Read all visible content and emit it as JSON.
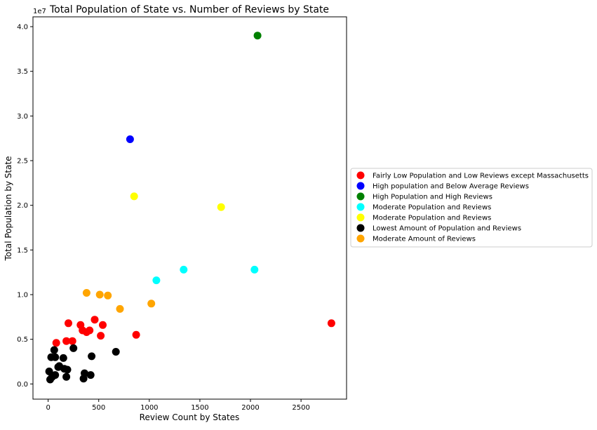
{
  "chart_data": {
    "type": "scatter",
    "title": "Total Population of State vs. Number of Reviews by State",
    "xlabel": "Review Count by States",
    "ylabel": "Total Population by State",
    "y_offset_label": "1e7",
    "xlim": [
      -150,
      2950
    ],
    "ylim": [
      -0.17,
      4.11
    ],
    "y_scale_factor": 10000000,
    "x_ticks": [
      0,
      500,
      1000,
      1500,
      2000,
      2500
    ],
    "x_tick_labels": [
      "0",
      "500",
      "1000",
      "1500",
      "2000",
      "2500"
    ],
    "y_ticks": [
      0,
      0.5,
      1.0,
      1.5,
      2.0,
      2.5,
      3.0,
      3.5,
      4.0
    ],
    "y_tick_labels": [
      "0.0",
      "0.5",
      "1.0",
      "1.5",
      "2.0",
      "2.5",
      "3.0",
      "3.5",
      "4.0"
    ],
    "grid": false,
    "legend_position": "outside-right",
    "series": [
      {
        "name": "Fairly Low Population and Low Reviews except Massachusetts",
        "color": "#ff0000",
        "points": [
          [
            80,
            0.46
          ],
          [
            180,
            0.48
          ],
          [
            200,
            0.68
          ],
          [
            240,
            0.48
          ],
          [
            320,
            0.66
          ],
          [
            340,
            0.6
          ],
          [
            380,
            0.58
          ],
          [
            410,
            0.6
          ],
          [
            460,
            0.72
          ],
          [
            520,
            0.54
          ],
          [
            540,
            0.66
          ],
          [
            870,
            0.55
          ],
          [
            2800,
            0.68
          ]
        ]
      },
      {
        "name": "High population and Below Average Reviews",
        "color": "#0000ff",
        "points": [
          [
            810,
            2.74
          ]
        ]
      },
      {
        "name": "High Population and High Reviews",
        "color": "#008000",
        "points": [
          [
            2070,
            3.9
          ]
        ]
      },
      {
        "name": "Moderate Population and Reviews",
        "color": "#00ffff",
        "points": [
          [
            1070,
            1.16
          ],
          [
            1340,
            1.28
          ],
          [
            2040,
            1.28
          ]
        ]
      },
      {
        "name": "Moderate Population and Reviews",
        "color": "#ffff00",
        "points": [
          [
            850,
            2.1
          ],
          [
            1710,
            1.98
          ]
        ]
      },
      {
        "name": "Lowest Amount of Population and Reviews",
        "color": "#000000",
        "points": [
          [
            10,
            0.14
          ],
          [
            20,
            0.05
          ],
          [
            30,
            0.3
          ],
          [
            40,
            0.08
          ],
          [
            60,
            0.38
          ],
          [
            70,
            0.3
          ],
          [
            70,
            0.1
          ],
          [
            100,
            0.19
          ],
          [
            110,
            0.2
          ],
          [
            150,
            0.29
          ],
          [
            160,
            0.17
          ],
          [
            180,
            0.08
          ],
          [
            190,
            0.16
          ],
          [
            250,
            0.4
          ],
          [
            350,
            0.06
          ],
          [
            360,
            0.12
          ],
          [
            420,
            0.1
          ],
          [
            430,
            0.31
          ],
          [
            670,
            0.36
          ]
        ]
      },
      {
        "name": "Moderate Amount of Reviews",
        "color": "#ffa500",
        "points": [
          [
            380,
            1.02
          ],
          [
            510,
            1.0
          ],
          [
            590,
            0.99
          ],
          [
            710,
            0.84
          ],
          [
            1020,
            0.9
          ]
        ]
      }
    ]
  }
}
